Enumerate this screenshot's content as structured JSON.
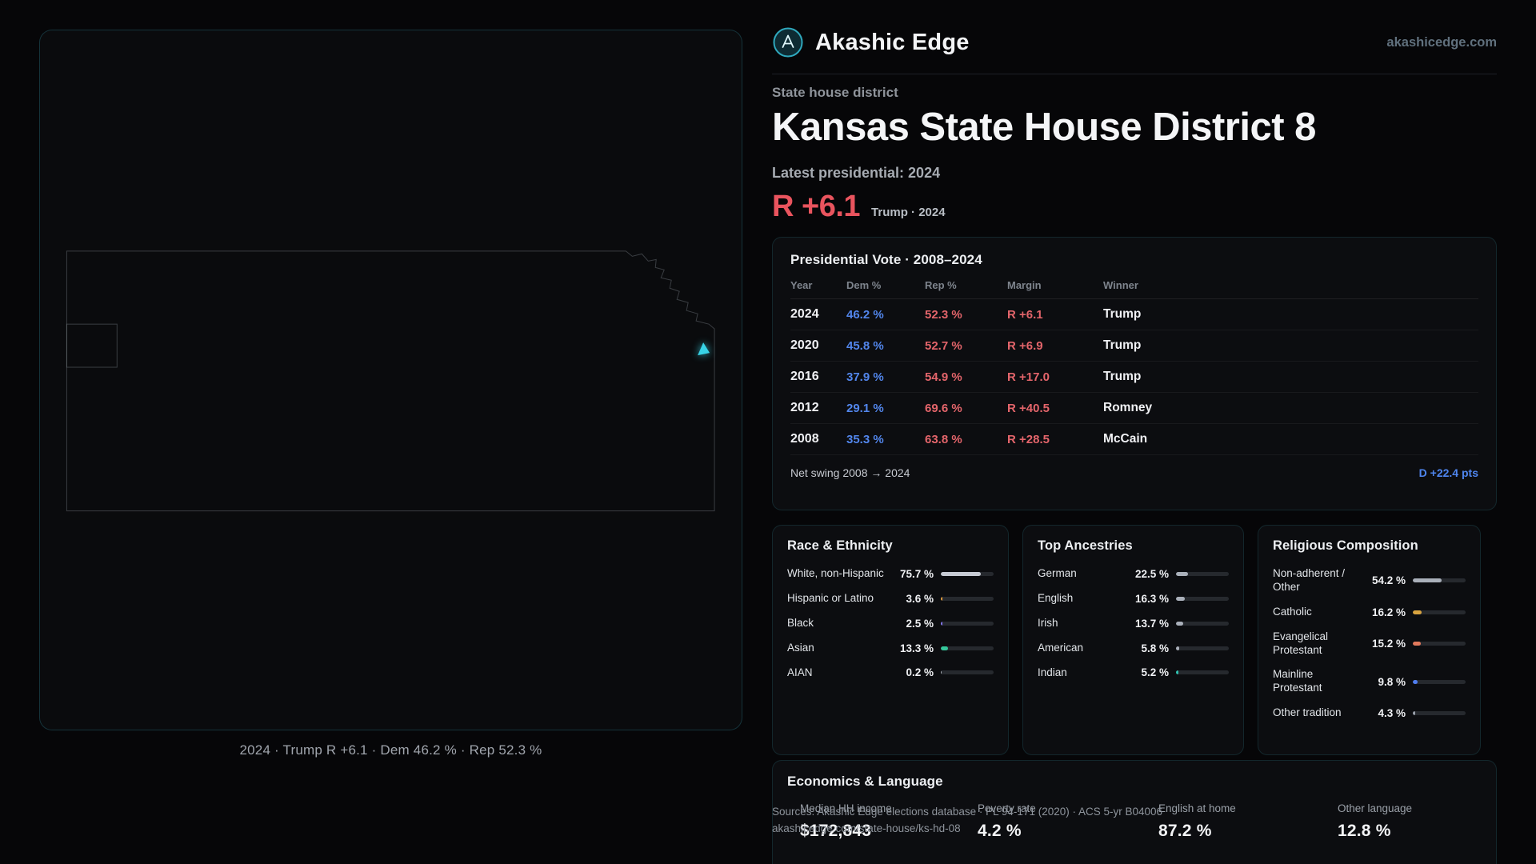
{
  "brand": {
    "name": "Akashic Edge",
    "domain": "akashicedge.com"
  },
  "hero": {
    "eyebrow": "State house district",
    "title": "Kansas State House District 8",
    "latest_label": "Latest presidential: 2024",
    "margin_value": "R +6.1",
    "margin_sub": "Trump · 2024"
  },
  "map": {
    "caption": "2024 · Trump R +6.1 · Dem 46.2 % · Rep 52.3 %"
  },
  "presidential": {
    "title": "Presidential Vote · 2008–2024",
    "columns": [
      "Year",
      "Dem %",
      "Rep %",
      "Margin",
      "Winner"
    ],
    "rows": [
      {
        "year": "2024",
        "dem": "46.2 %",
        "rep": "52.3 %",
        "margin": "R +6.1",
        "winner": "Trump"
      },
      {
        "year": "2020",
        "dem": "45.8 %",
        "rep": "52.7 %",
        "margin": "R +6.9",
        "winner": "Trump"
      },
      {
        "year": "2016",
        "dem": "37.9 %",
        "rep": "54.9 %",
        "margin": "R +17.0",
        "winner": "Trump"
      },
      {
        "year": "2012",
        "dem": "29.1 %",
        "rep": "69.6 %",
        "margin": "R +40.5",
        "winner": "Romney"
      },
      {
        "year": "2008",
        "dem": "35.3 %",
        "rep": "63.8 %",
        "margin": "R +28.5",
        "winner": "McCain"
      }
    ],
    "net_swing_label": "Net swing 2008 → 2024",
    "net_swing_value": "D +22.4 pts"
  },
  "demographics": [
    {
      "title": "Race & Ethnicity",
      "rows": [
        {
          "label": "White, non-Hispanic",
          "value": "75.7 %",
          "pct": 75.7,
          "color": "#c7cbd4"
        },
        {
          "label": "Hispanic or Latino",
          "value": "3.6 %",
          "pct": 3.6,
          "color": "#e19b3e"
        },
        {
          "label": "Black",
          "value": "2.5 %",
          "pct": 2.5,
          "color": "#8578ef"
        },
        {
          "label": "Asian",
          "value": "13.3 %",
          "pct": 13.3,
          "color": "#35c79b"
        },
        {
          "label": "AIAN",
          "value": "0.2 %",
          "pct": 0.2,
          "color": "#aab0ba"
        }
      ]
    },
    {
      "title": "Top Ancestries",
      "rows": [
        {
          "label": "German",
          "value": "22.5 %",
          "pct": 22.5,
          "color": "#aab0ba"
        },
        {
          "label": "English",
          "value": "16.3 %",
          "pct": 16.3,
          "color": "#aab0ba"
        },
        {
          "label": "Irish",
          "value": "13.7 %",
          "pct": 13.7,
          "color": "#aab0ba"
        },
        {
          "label": "American",
          "value": "5.8 %",
          "pct": 5.8,
          "color": "#aab0ba"
        },
        {
          "label": "Indian",
          "value": "5.2 %",
          "pct": 5.2,
          "color": "#2fc4b2"
        }
      ]
    },
    {
      "title": "Religious Composition",
      "rows": [
        {
          "label": "Non-adherent / Other",
          "value": "54.2 %",
          "pct": 54.2,
          "color": "#aab0ba"
        },
        {
          "label": "Catholic",
          "value": "16.2 %",
          "pct": 16.2,
          "color": "#d9a440"
        },
        {
          "label": "Evangelical Protestant",
          "value": "15.2 %",
          "pct": 15.2,
          "color": "#e2795c"
        },
        {
          "label": "Mainline Protestant",
          "value": "9.8 %",
          "pct": 9.8,
          "color": "#4f7df0"
        },
        {
          "label": "Other tradition",
          "value": "4.3 %",
          "pct": 4.3,
          "color": "#9aa0ab"
        }
      ]
    }
  ],
  "economics": {
    "title": "Economics & Language",
    "stats": [
      {
        "label": "Median HH income",
        "value": "$172,843"
      },
      {
        "label": "Poverty rate",
        "value": "4.2 %"
      },
      {
        "label": "English at home",
        "value": "87.2 %"
      },
      {
        "label": "Other language",
        "value": "12.8 %"
      }
    ]
  },
  "sources": {
    "line1": "Sources: Akashic Edge elections database · PL 94-171 (2020) · ACS 5-yr B04006",
    "line2": "akashicedge.com/state-house/ks-hd-08"
  },
  "theme": {
    "dem_blue": "#5286ec",
    "rep_red": "#e4656b",
    "accent_red": "#e9545e",
    "swing_blue": "#4f86f0",
    "marker_cyan": "#38d3e6"
  }
}
